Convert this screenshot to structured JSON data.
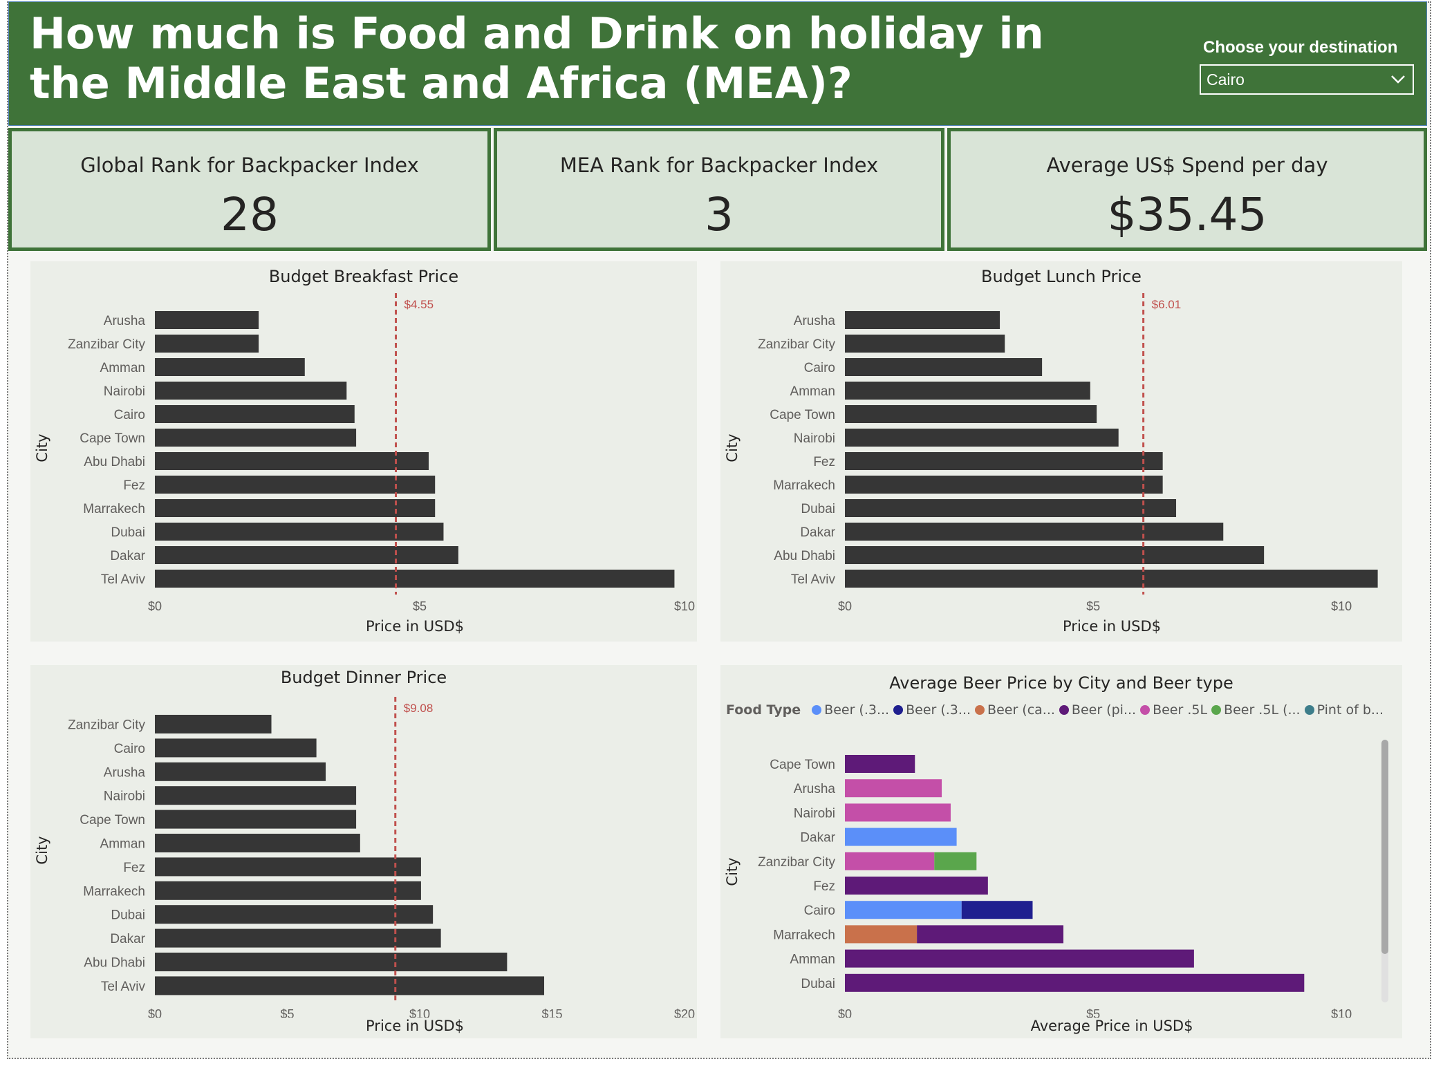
{
  "header": {
    "title": "How much is Food and Drink on holiday in the Middle East and Africa (MEA)?",
    "destination_label": "Choose your destination",
    "destination_value": "Cairo"
  },
  "kpis": [
    {
      "label": "Global Rank for Backpacker Index",
      "value": "28"
    },
    {
      "label": "MEA Rank for Backpacker Index",
      "value": "3"
    },
    {
      "label": "Average US$ Spend per day",
      "value": "$35.45"
    }
  ],
  "colors": {
    "header_bg": "#3f7339",
    "bar": "#363636",
    "reference_line": "#c0504d",
    "panel_bg": "#ebeee8",
    "kpi_bg": "#d9e4d7"
  },
  "chart_data": [
    {
      "type": "bar",
      "orientation": "horizontal",
      "title": "Budget Breakfast Price",
      "xlabel": "Price in USD$",
      "ylabel": "City",
      "xlim": [
        0,
        10
      ],
      "xticks": [
        "$0",
        "$5",
        "$10"
      ],
      "categories": [
        "Arusha",
        "Zanzibar City",
        "Amman",
        "Nairobi",
        "Cairo",
        "Cape Town",
        "Abu Dhabi",
        "Fez",
        "Marrakech",
        "Dubai",
        "Dakar",
        "Tel Aviv"
      ],
      "values": [
        1.96,
        1.96,
        2.83,
        3.62,
        3.77,
        3.8,
        5.17,
        5.29,
        5.29,
        5.45,
        5.73,
        9.81
      ],
      "reference_line": {
        "value": 4.55,
        "label": "$4.55"
      }
    },
    {
      "type": "bar",
      "orientation": "horizontal",
      "title": "Budget Lunch Price",
      "xlabel": "Price in USD$",
      "ylabel": "City",
      "xlim": [
        0,
        11
      ],
      "xticks": [
        "$0",
        "$5",
        "$10"
      ],
      "categories": [
        "Arusha",
        "Zanzibar City",
        "Cairo",
        "Amman",
        "Cape Town",
        "Nairobi",
        "Fez",
        "Marrakech",
        "Dubai",
        "Dakar",
        "Abu Dhabi",
        "Tel Aviv"
      ],
      "values": [
        3.12,
        3.22,
        3.97,
        4.94,
        5.07,
        5.51,
        6.4,
        6.4,
        6.67,
        7.62,
        8.44,
        10.73
      ],
      "reference_line": {
        "value": 6.01,
        "label": "$6.01"
      }
    },
    {
      "type": "bar",
      "orientation": "horizontal",
      "title": "Budget Dinner Price",
      "xlabel": "Price in USD$",
      "ylabel": "City",
      "xlim": [
        0,
        20
      ],
      "xticks": [
        "$0",
        "$5",
        "$10",
        "$15",
        "$20"
      ],
      "categories": [
        "Zanzibar City",
        "Cairo",
        "Arusha",
        "Nairobi",
        "Cape Town",
        "Amman",
        "Fez",
        "Marrakech",
        "Dubai",
        "Dakar",
        "Abu Dhabi",
        "Tel Aviv"
      ],
      "values": [
        4.4,
        6.1,
        6.45,
        7.6,
        7.6,
        7.75,
        10.05,
        10.05,
        10.5,
        10.8,
        13.3,
        14.7
      ],
      "reference_line": {
        "value": 9.08,
        "label": "$9.08"
      }
    },
    {
      "type": "bar",
      "orientation": "horizontal",
      "stacked": true,
      "title": "Average Beer Price by City and Beer type",
      "xlabel": "Average Price in USD$",
      "ylabel": "City",
      "xlim": [
        0,
        11
      ],
      "xticks": [
        "$0",
        "$5",
        "$10"
      ],
      "legend_title": "Food Type",
      "categories": [
        "Cape Town",
        "Arusha",
        "Nairobi",
        "Dakar",
        "Zanzibar City",
        "Fez",
        "Cairo",
        "Marrakech",
        "Amman",
        "Dubai"
      ],
      "series": [
        {
          "name": "Beer (.3...",
          "color": "#5b8ff9",
          "values": [
            0,
            0,
            0,
            2.25,
            0,
            0,
            2.35,
            0,
            0,
            0
          ]
        },
        {
          "name": "Beer (.3...",
          "color": "#1f1f8f",
          "values": [
            0,
            0,
            0,
            0,
            0,
            0,
            1.43,
            0,
            0,
            0
          ]
        },
        {
          "name": "Beer (ca...",
          "color": "#c9714b",
          "values": [
            0,
            0,
            0,
            0,
            0,
            0,
            0,
            1.45,
            0,
            0
          ]
        },
        {
          "name": "Beer (pi...",
          "color": "#5e1a78",
          "values": [
            1.41,
            0,
            0,
            0,
            0,
            2.88,
            0,
            2.95,
            7.03,
            9.25
          ]
        },
        {
          "name": "Beer .5L",
          "color": "#c44fa8",
          "values": [
            0,
            1.95,
            2.13,
            0,
            1.8,
            0,
            0,
            0,
            0,
            0
          ]
        },
        {
          "name": "Beer .5L (...",
          "color": "#5aa64c",
          "values": [
            0,
            0,
            0,
            0,
            0.85,
            0,
            0,
            0,
            0,
            0
          ]
        },
        {
          "name": "Pint of b...",
          "color": "#3d7d8a",
          "values": [
            0,
            0,
            0,
            0,
            0,
            0,
            0,
            0,
            0,
            0
          ]
        }
      ]
    }
  ]
}
